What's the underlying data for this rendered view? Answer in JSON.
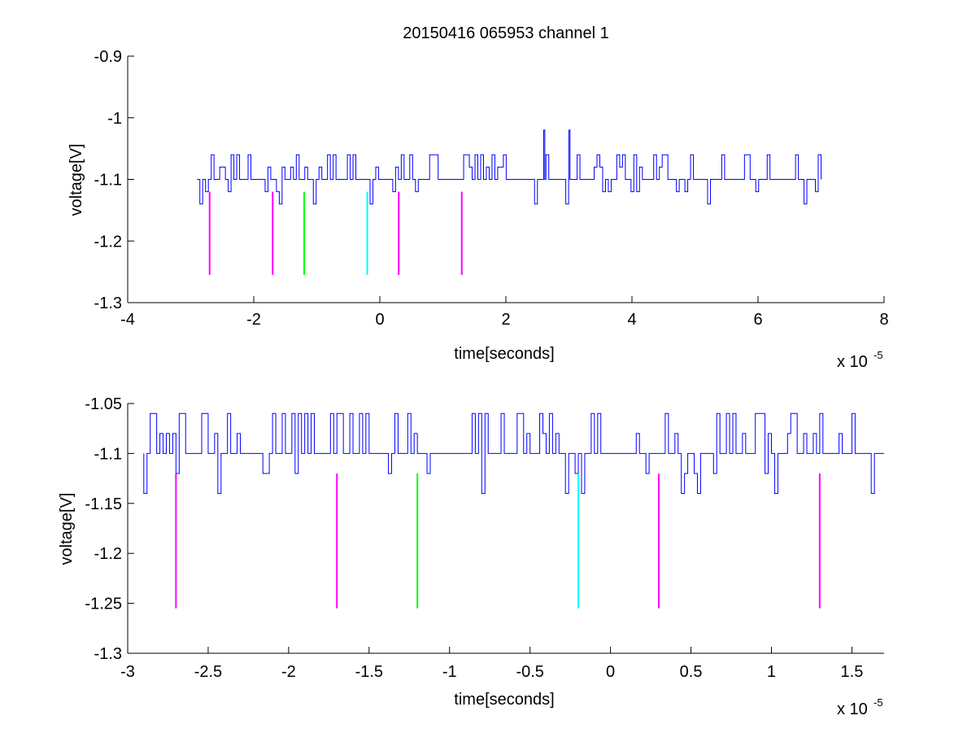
{
  "title": "20150416 065953 channel 1",
  "chart_data": [
    {
      "type": "line",
      "id": "top",
      "xlabel": "time[seconds]",
      "ylabel": "voltage[V]",
      "x_exponent_base": "x 10",
      "x_exponent_power": "-5",
      "xlim": [
        -4,
        8
      ],
      "ylim": [
        -1.3,
        -0.9
      ],
      "xticks": [
        -4,
        -2,
        0,
        2,
        4,
        6,
        8
      ],
      "xtick_labels": [
        "-4",
        "-2",
        "0",
        "2",
        "4",
        "6",
        "8"
      ],
      "yticks": [
        -1.3,
        -1.2,
        -1.1,
        -1,
        -0.9
      ],
      "ytick_labels": [
        "-1.3",
        "-1.2",
        "-1.1",
        "-1",
        "-0.9"
      ],
      "grid": false,
      "series": [
        {
          "color": "#0000ff",
          "signal_description": "digitised trace quantised to levels -1.14, -1.12, -1.10, -1.08, -1.06; baseline -1.10",
          "x_range": [
            -2.9,
            7.0
          ],
          "levels": [
            -1.14,
            -1.12,
            -1.1,
            -1.08,
            -1.06
          ],
          "baseline": -1.1,
          "spikes": [
            {
              "x": 2.6,
              "y": -1.02
            },
            {
              "x": 3.0,
              "y": -1.02
            }
          ]
        }
      ],
      "markers": [
        {
          "x": -2.7,
          "y_top": -1.12,
          "y_bottom": -1.255,
          "color": "#ff00ff"
        },
        {
          "x": -1.7,
          "y_top": -1.12,
          "y_bottom": -1.255,
          "color": "#ff00ff"
        },
        {
          "x": -1.2,
          "y_top": -1.12,
          "y_bottom": -1.255,
          "color": "#00ff00"
        },
        {
          "x": -0.2,
          "y_top": -1.12,
          "y_bottom": -1.255,
          "color": "#00ffff"
        },
        {
          "x": 0.3,
          "y_top": -1.12,
          "y_bottom": -1.255,
          "color": "#ff00ff"
        },
        {
          "x": 1.3,
          "y_top": -1.12,
          "y_bottom": -1.255,
          "color": "#ff00ff"
        }
      ]
    },
    {
      "type": "line",
      "id": "bottom",
      "xlabel": "time[seconds]",
      "ylabel": "voltage[V]",
      "x_exponent_base": "x 10",
      "x_exponent_power": "-5",
      "xlim": [
        -3.0,
        1.7
      ],
      "ylim": [
        -1.3,
        -1.05
      ],
      "xticks": [
        -3,
        -2.5,
        -2,
        -1.5,
        -1,
        -0.5,
        0,
        0.5,
        1,
        1.5
      ],
      "xtick_labels": [
        "-3",
        "-2.5",
        "-2",
        "-1.5",
        "-1",
        "-0.5",
        "0",
        "0.5",
        "1",
        "1.5"
      ],
      "yticks": [
        -1.3,
        -1.25,
        -1.2,
        -1.15,
        -1.1,
        -1.05
      ],
      "ytick_labels": [
        "-1.3",
        "-1.25",
        "-1.2",
        "-1.15",
        "-1.1",
        "-1.05"
      ],
      "grid": false,
      "series": [
        {
          "color": "#0000ff",
          "signal_description": "zoomed view of the same quantised trace; baseline -1.10",
          "x_range": [
            -2.9,
            1.7
          ],
          "levels": [
            -1.14,
            -1.12,
            -1.1,
            -1.08,
            -1.06
          ],
          "baseline": -1.1
        }
      ],
      "markers": [
        {
          "x": -2.7,
          "y_top": -1.12,
          "y_bottom": -1.255,
          "color": "#ff00ff"
        },
        {
          "x": -1.7,
          "y_top": -1.12,
          "y_bottom": -1.255,
          "color": "#ff00ff"
        },
        {
          "x": -1.2,
          "y_top": -1.12,
          "y_bottom": -1.255,
          "color": "#00ff00"
        },
        {
          "x": -0.2,
          "y_top": -1.12,
          "y_bottom": -1.255,
          "color": "#00ffff"
        },
        {
          "x": 0.3,
          "y_top": -1.12,
          "y_bottom": -1.255,
          "color": "#ff00ff"
        },
        {
          "x": 1.3,
          "y_top": -1.12,
          "y_bottom": -1.255,
          "color": "#ff00ff"
        }
      ]
    }
  ]
}
